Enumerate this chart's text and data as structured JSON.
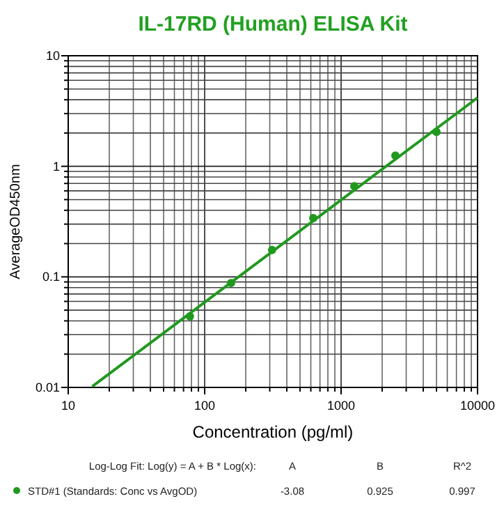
{
  "chart_data": {
    "type": "scatter",
    "title": "IL-17RD (Human) ELISA Kit",
    "xlabel": "Concentration (pg/ml)",
    "ylabel": "AverageOD450nm",
    "log": "xy",
    "grid": true,
    "legend": "bottom",
    "marker": "circle",
    "xlim": [
      10,
      10000
    ],
    "ylim": [
      0.01,
      10
    ],
    "xticks": [
      10,
      {
        "value": 20,
        "label": null
      },
      {
        "value": 30,
        "label": null
      },
      {
        "value": 40,
        "label": null
      },
      {
        "value": 50,
        "label": null
      },
      {
        "value": 60,
        "label": null
      },
      {
        "value": 70,
        "label": null
      },
      {
        "value": 80,
        "label": null
      },
      {
        "value": 90,
        "label": null
      },
      100,
      {
        "value": 200,
        "label": null
      },
      {
        "value": 300,
        "label": null
      },
      {
        "value": 400,
        "label": null
      },
      {
        "value": 500,
        "label": null
      },
      {
        "value": 600,
        "label": null
      },
      {
        "value": 700,
        "label": null
      },
      {
        "value": 800,
        "label": null
      },
      {
        "value": 900,
        "label": null
      },
      1000,
      {
        "value": 2000,
        "label": null
      },
      {
        "value": 3000,
        "label": null
      },
      {
        "value": 4000,
        "label": null
      },
      {
        "value": 5000,
        "label": null
      },
      {
        "value": 6000,
        "label": null
      },
      {
        "value": 7000,
        "label": null
      },
      {
        "value": 8000,
        "label": null
      },
      {
        "value": 9000,
        "label": null
      },
      10000
    ],
    "yticks": [
      0.01,
      {
        "value": 0.02,
        "label": null
      },
      {
        "value": 0.03,
        "label": null
      },
      {
        "value": 0.04,
        "label": null
      },
      {
        "value": 0.05,
        "label": null
      },
      {
        "value": 0.06,
        "label": null
      },
      {
        "value": 0.07,
        "label": null
      },
      {
        "value": 0.08,
        "label": null
      },
      {
        "value": 0.09,
        "label": null
      },
      0.1,
      {
        "value": 0.2,
        "label": null
      },
      {
        "value": 0.3,
        "label": null
      },
      {
        "value": 0.4,
        "label": null
      },
      {
        "value": 0.5,
        "label": null
      },
      {
        "value": 0.6,
        "label": null
      },
      {
        "value": 0.7,
        "label": null
      },
      {
        "value": 0.8,
        "label": null
      },
      {
        "value": 0.9,
        "label": null
      },
      1,
      {
        "value": 2,
        "label": null
      },
      {
        "value": 3,
        "label": null
      },
      {
        "value": 4,
        "label": null
      },
      {
        "value": 5,
        "label": null
      },
      {
        "value": 6,
        "label": null
      },
      {
        "value": 7,
        "label": null
      },
      {
        "value": 8,
        "label": null
      },
      {
        "value": 9,
        "label": null
      },
      10
    ],
    "series": [
      {
        "name": "STD#1 (Standards: Conc vs AvgOD)",
        "color": "#1f9a1f",
        "x": [
          78,
          156,
          312,
          625,
          1250,
          2500,
          5000
        ],
        "values": [
          0.044,
          0.088,
          0.175,
          0.34,
          0.66,
          1.25,
          2.05
        ]
      },
      {
        "type": "line",
        "marker": "none",
        "color": "#1f9a1f",
        "x": [
          15,
          10000
        ],
        "values": [
          0.0102,
          4.17
        ]
      }
    ],
    "annotations": [
      "Log-Log Fit: Log(y) = A + B * Log(x):",
      "A",
      "B",
      "R^2",
      "-3.08",
      "0.925",
      "0.997"
    ]
  }
}
